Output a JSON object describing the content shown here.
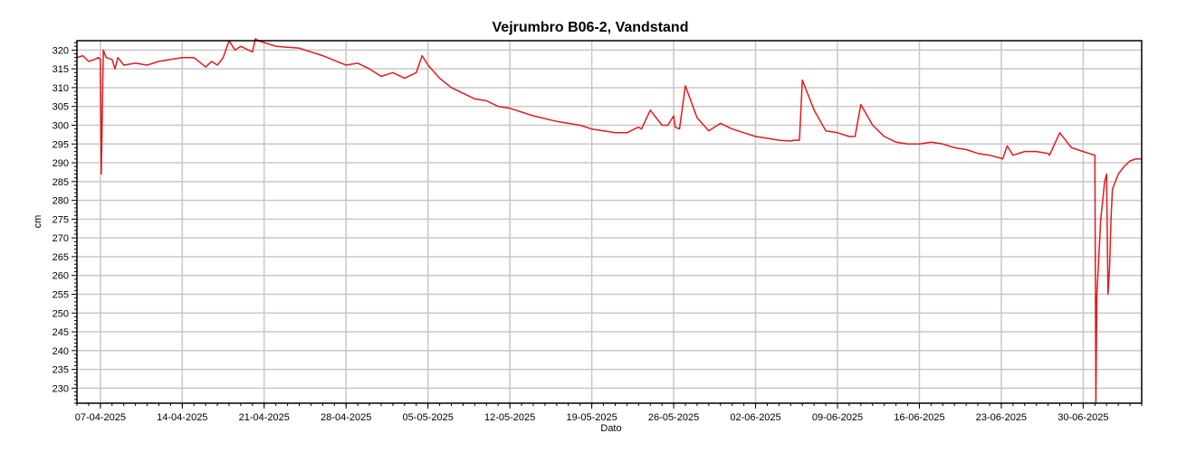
{
  "chart_data": {
    "type": "line",
    "title": "Vejrumbro B06-2, Vandstand",
    "xlabel": "Dato",
    "ylabel": "cm",
    "x_tick_labels": [
      "07-04-2025",
      "14-04-2025",
      "21-04-2025",
      "28-04-2025",
      "05-05-2025",
      "12-05-2025",
      "19-05-2025",
      "26-05-2025",
      "02-06-2025",
      "09-06-2025",
      "16-06-2025",
      "23-06-2025",
      "30-06-2025"
    ],
    "y_tick_labels": [
      "230",
      "235",
      "240",
      "245",
      "250",
      "255",
      "260",
      "265",
      "270",
      "275",
      "280",
      "285",
      "290",
      "295",
      "300",
      "305",
      "310",
      "315",
      "320"
    ],
    "xlim": [
      "2025-04-05",
      "2025-07-05"
    ],
    "ylim": [
      226,
      322.5
    ],
    "grid": true,
    "colors": {
      "series": "#e31a1c",
      "grid": "#c8c8c8",
      "frame": "#000000"
    },
    "series": [
      {
        "x": [
          "2025-04-05",
          "2025-04-05T12:00",
          "2025-04-06",
          "2025-04-06T12:00",
          "2025-04-06T20:00",
          "2025-04-07",
          "2025-04-07T02:00",
          "2025-04-07T06:00",
          "2025-04-07T12:00",
          "2025-04-08",
          "2025-04-08T06:00",
          "2025-04-08T12:00",
          "2025-04-09",
          "2025-04-10",
          "2025-04-11",
          "2025-04-12",
          "2025-04-13",
          "2025-04-14",
          "2025-04-15",
          "2025-04-16",
          "2025-04-16T12:00",
          "2025-04-17",
          "2025-04-17T06:00",
          "2025-04-17T12:00",
          "2025-04-18",
          "2025-04-18T12:00",
          "2025-04-19",
          "2025-04-20",
          "2025-04-20T06:00",
          "2025-04-20T12:00",
          "2025-04-22",
          "2025-04-24",
          "2025-04-26",
          "2025-04-28",
          "2025-04-29",
          "2025-04-30",
          "2025-05-01",
          "2025-05-02",
          "2025-05-03",
          "2025-05-04",
          "2025-05-04T12:00",
          "2025-05-05",
          "2025-05-06",
          "2025-05-07",
          "2025-05-08",
          "2025-05-09",
          "2025-05-10",
          "2025-05-11",
          "2025-05-12",
          "2025-05-14",
          "2025-05-16",
          "2025-05-18",
          "2025-05-19",
          "2025-05-21",
          "2025-05-22",
          "2025-05-23",
          "2025-05-23T06:00",
          "2025-05-24",
          "2025-05-25",
          "2025-05-25T12:00",
          "2025-05-26",
          "2025-05-26T03:00",
          "2025-05-26T12:00",
          "2025-05-27",
          "2025-05-28",
          "2025-05-29",
          "2025-05-30",
          "2025-05-31",
          "2025-06-01",
          "2025-06-02",
          "2025-06-03",
          "2025-06-04",
          "2025-06-05",
          "2025-06-05T06:00",
          "2025-06-05T18:00",
          "2025-06-06",
          "2025-06-07",
          "2025-06-08",
          "2025-06-09",
          "2025-06-10",
          "2025-06-10T12:00",
          "2025-06-11",
          "2025-06-12",
          "2025-06-13",
          "2025-06-14",
          "2025-06-15",
          "2025-06-16",
          "2025-06-17",
          "2025-06-18",
          "2025-06-19",
          "2025-06-20",
          "2025-06-21",
          "2025-06-22",
          "2025-06-23",
          "2025-06-23T03:00",
          "2025-06-23T12:00",
          "2025-06-24",
          "2025-06-25",
          "2025-06-26",
          "2025-06-27",
          "2025-06-27T03:00",
          "2025-06-28",
          "2025-06-29",
          "2025-06-30",
          "2025-06-30T12:00",
          "2025-07-01",
          "2025-07-01T02:00",
          "2025-07-01T04:00",
          "2025-07-01T12:00",
          "2025-07-01T20:00",
          "2025-07-02",
          "2025-07-02T03:00",
          "2025-07-02T06:00",
          "2025-07-02T09:00",
          "2025-07-02T12:00",
          "2025-07-03",
          "2025-07-03T12:00",
          "2025-07-04",
          "2025-07-04T12:00",
          "2025-07-05"
        ],
        "y": [
          318,
          318.5,
          317,
          317.5,
          318,
          317.5,
          287,
          320,
          318,
          317.5,
          315,
          318,
          316,
          316.5,
          316,
          317,
          317.5,
          318,
          318,
          315.5,
          317,
          316,
          317,
          318,
          322.5,
          320,
          321,
          319.5,
          323,
          322.5,
          321,
          320.5,
          318.5,
          316,
          316.5,
          315,
          313,
          314,
          312.5,
          314,
          318.5,
          316,
          312.5,
          310,
          308.5,
          307,
          306.5,
          305,
          304.5,
          302.5,
          301,
          300,
          299,
          298,
          298,
          299.5,
          299,
          304,
          300,
          300,
          302.5,
          299.5,
          299,
          310.5,
          302,
          298.5,
          300.5,
          299,
          298,
          297,
          296.5,
          296,
          295.8,
          296,
          296,
          312,
          304,
          298.5,
          298,
          297,
          297,
          305.5,
          300,
          297,
          295.5,
          295,
          295,
          295.5,
          295,
          294,
          293.5,
          292.5,
          292,
          291.2,
          291,
          294.5,
          292,
          293,
          293,
          292.5,
          292,
          298,
          294,
          293,
          292.5,
          292,
          226,
          255,
          275,
          285,
          287,
          255,
          262,
          275,
          283,
          287,
          289,
          290.5,
          291,
          291
        ]
      }
    ]
  }
}
